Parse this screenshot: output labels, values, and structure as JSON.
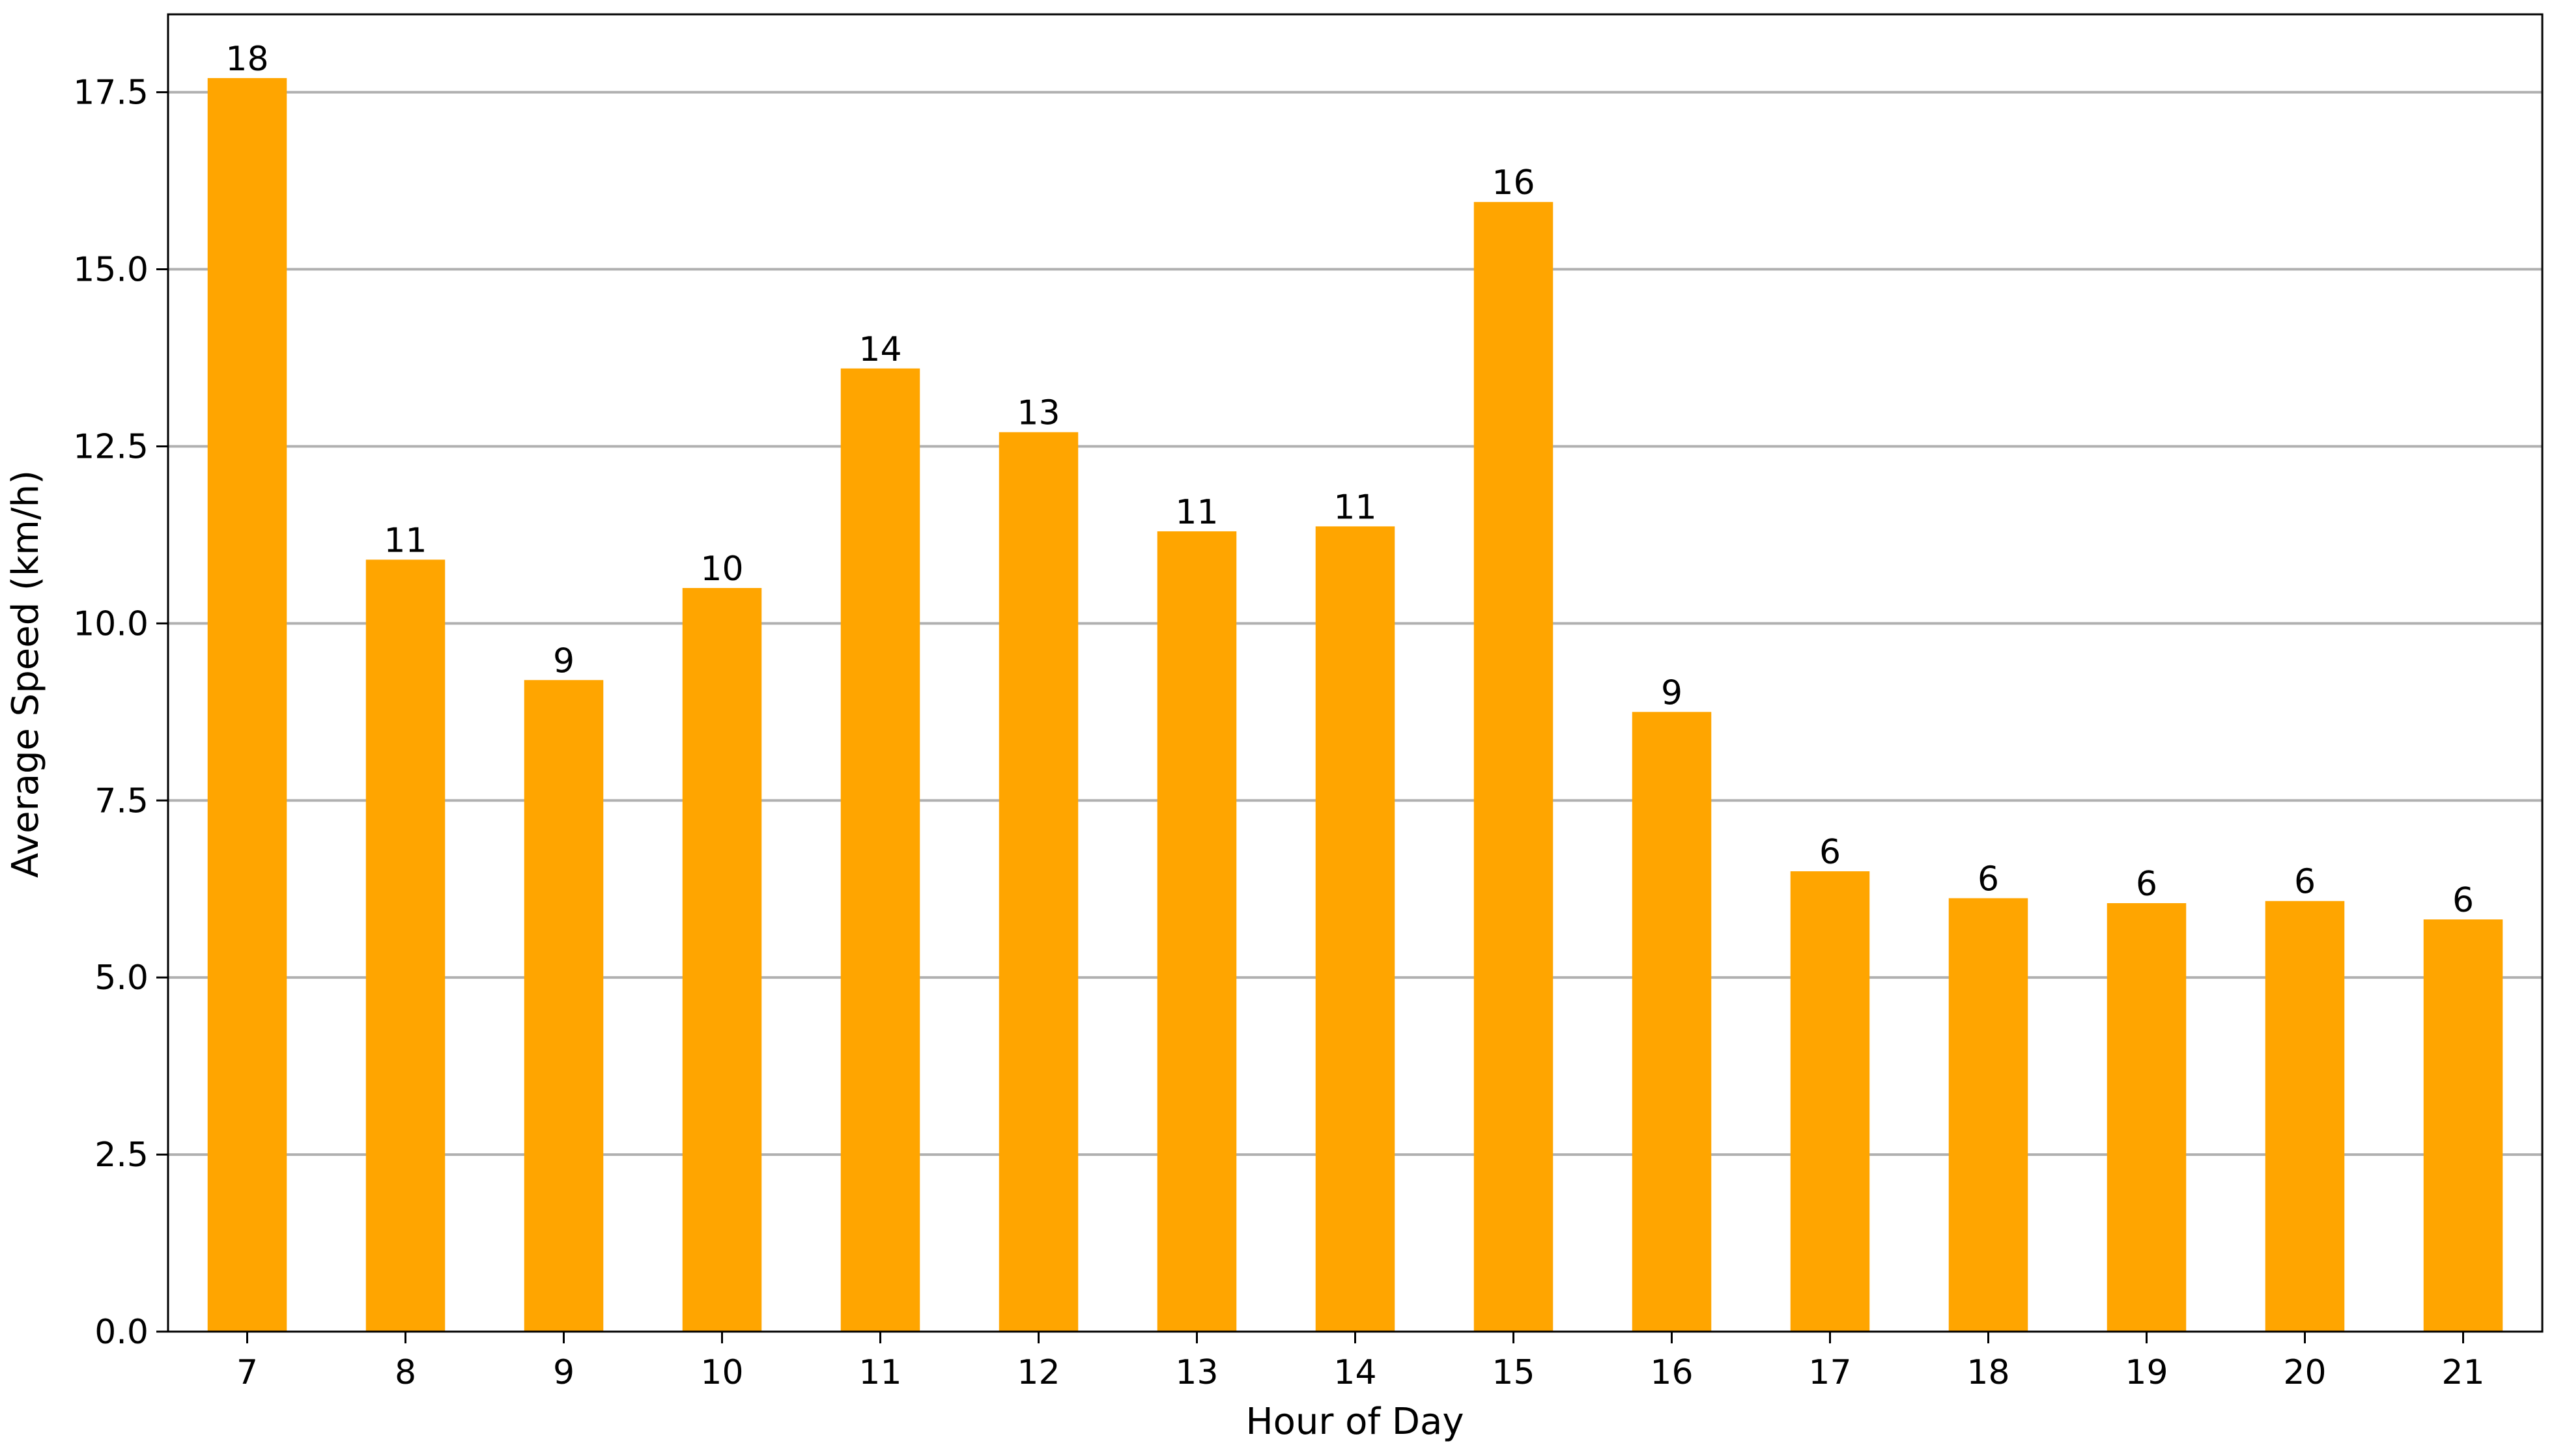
{
  "chart_data": {
    "type": "bar",
    "title": "",
    "xlabel": "Hour of Day",
    "ylabel": "Average Speed (km/h)",
    "categories": [
      "7",
      "8",
      "9",
      "10",
      "11",
      "12",
      "13",
      "14",
      "15",
      "16",
      "17",
      "18",
      "19",
      "20",
      "21"
    ],
    "values": [
      17.7,
      10.9,
      9.2,
      10.5,
      13.6,
      12.7,
      11.3,
      11.37,
      15.95,
      8.75,
      6.5,
      6.12,
      6.05,
      6.08,
      5.82
    ],
    "data_labels": [
      "18",
      "11",
      "9",
      "10",
      "14",
      "13",
      "11",
      "11",
      "16",
      "9",
      "6",
      "6",
      "6",
      "6",
      "6"
    ],
    "ylim": [
      0,
      18.6
    ],
    "yticks": [
      0.0,
      2.5,
      5.0,
      7.5,
      10.0,
      12.5,
      15.0,
      17.5
    ],
    "ytick_labels": [
      "0.0",
      "2.5",
      "5.0",
      "7.5",
      "10.0",
      "12.5",
      "15.0",
      "17.5"
    ],
    "grid": "y",
    "bar_color": "#FFA500",
    "grid_color": "#b0b0b0",
    "legend": "none"
  }
}
